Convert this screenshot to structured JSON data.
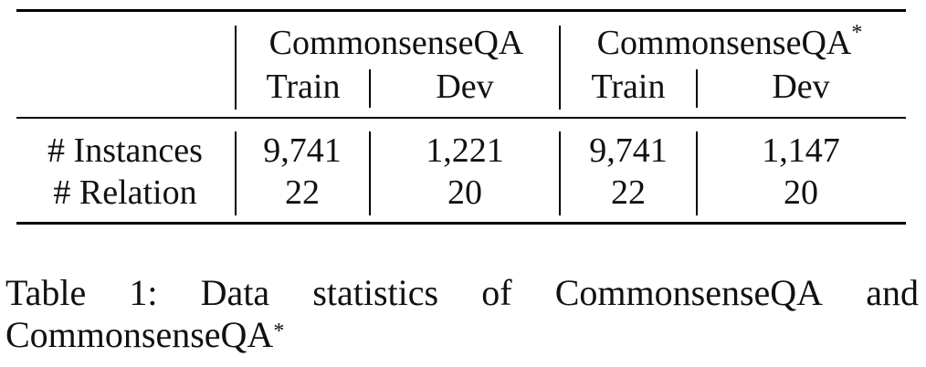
{
  "table": {
    "group_headers": [
      {
        "label": "CommonsenseQA",
        "star": ""
      },
      {
        "label": "CommonsenseQA",
        "star": "*"
      }
    ],
    "sub_headers": [
      "Train",
      "Dev",
      "Train",
      "Dev"
    ],
    "rows": [
      {
        "label": "# Instances",
        "values": [
          "9,741",
          "1,221",
          "9,741",
          "1,147"
        ]
      },
      {
        "label": "# Relation",
        "values": [
          "22",
          "20",
          "22",
          "20"
        ]
      }
    ]
  },
  "caption": {
    "words_line1": [
      "Table",
      "1:",
      "Data",
      "statistics",
      "of",
      "CommonsenseQA",
      "and"
    ],
    "line2_text": "CommonsenseQA",
    "line2_star": "*"
  }
}
